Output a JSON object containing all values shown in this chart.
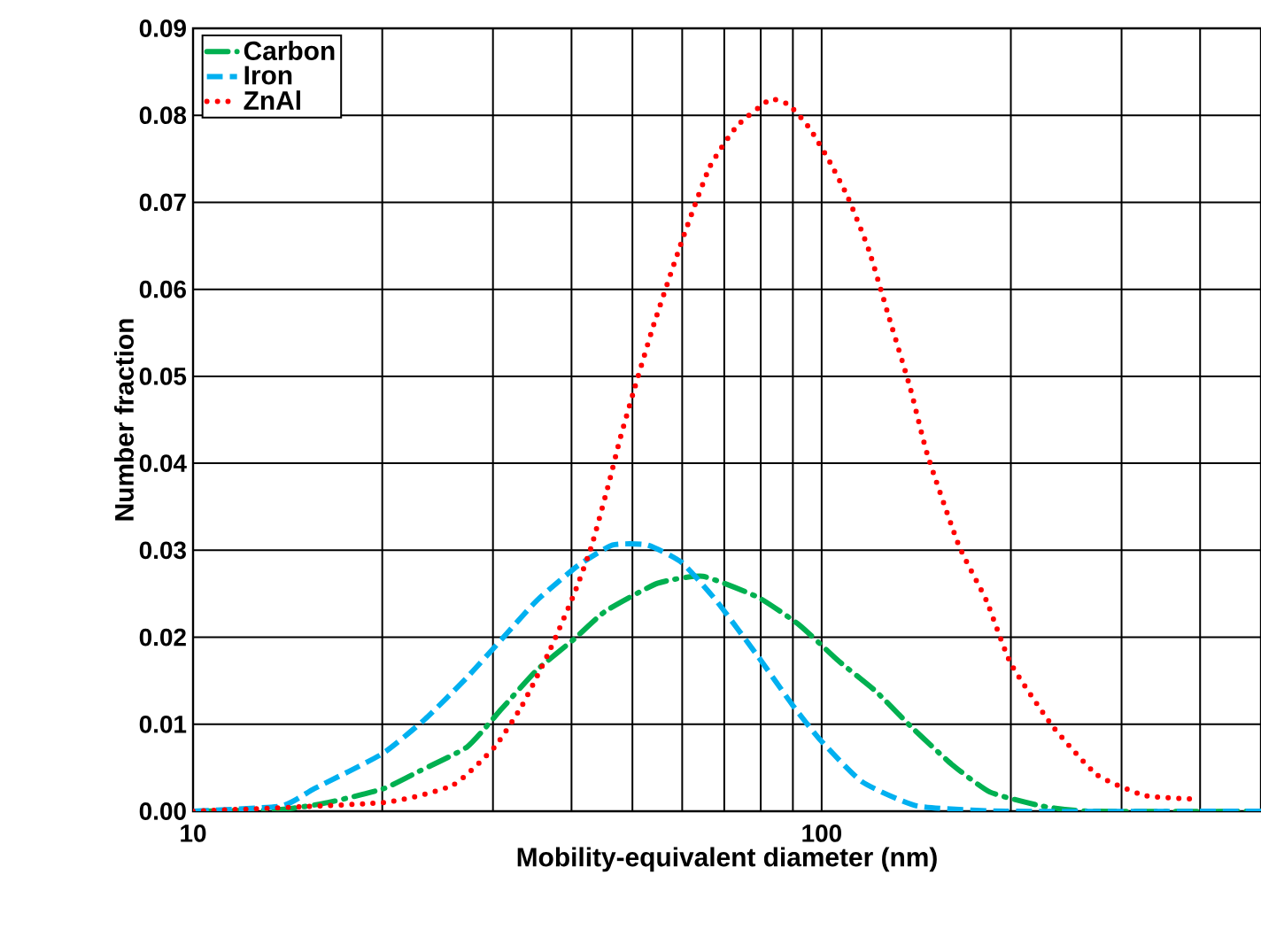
{
  "chart_data": {
    "type": "line",
    "xlabel": "Mobility-equivalent diameter (nm)",
    "ylabel": "Number fraction",
    "log": "x",
    "grid": true,
    "legend": "top left",
    "marker": "none",
    "xlim": [
      10,
      500
    ],
    "ylim": [
      0,
      0.09
    ],
    "xticks": [
      10,
      {
        "value": 20,
        "label": null
      },
      {
        "value": 30,
        "label": null
      },
      {
        "value": 40,
        "label": null
      },
      {
        "value": 50,
        "label": null
      },
      {
        "value": 60,
        "label": null
      },
      {
        "value": 70,
        "label": null
      },
      {
        "value": 80,
        "label": null
      },
      {
        "value": 90,
        "label": null
      },
      100,
      {
        "value": 200,
        "label": null
      },
      {
        "value": 300,
        "label": null
      },
      {
        "value": 400,
        "label": null
      },
      {
        "value": 500,
        "label": null
      }
    ],
    "yticks": [
      {
        "value": 0,
        "label": "0.00"
      },
      {
        "value": 0.01,
        "label": "0.01"
      },
      {
        "value": 0.02,
        "label": "0.02"
      },
      {
        "value": 0.03,
        "label": "0.03"
      },
      {
        "value": 0.04,
        "label": "0.04"
      },
      {
        "value": 0.05,
        "label": "0.05"
      },
      {
        "value": 0.06,
        "label": "0.06"
      },
      {
        "value": 0.07,
        "label": "0.07"
      },
      {
        "value": 0.08,
        "label": "0.08"
      },
      {
        "value": 0.09,
        "label": "0.09"
      }
    ],
    "series": [
      {
        "name": "Carbon",
        "color": "#00b050",
        "line_style": "dashdot",
        "x": [
          10,
          13.8,
          16.4,
          20.1,
          22.9,
          27.3,
          31,
          35.2,
          40.4,
          45.3,
          54.8,
          64.7,
          79.2,
          92.2,
          105.9,
          121.9,
          138.4,
          161,
          185.3,
          223.9,
          267,
          500
        ],
        "values": [
          0,
          0.0002,
          0.001,
          0.0026,
          0.0046,
          0.0074,
          0.0118,
          0.0162,
          0.0198,
          0.023,
          0.0262,
          0.027,
          0.0246,
          0.0214,
          0.0174,
          0.0138,
          0.0098,
          0.0054,
          0.0022,
          0.0006,
          0,
          0
        ]
      },
      {
        "name": "Iron",
        "color": "#00b0f0",
        "line_style": "dashed",
        "x": [
          10,
          13.8,
          15.6,
          20,
          23.4,
          27.3,
          31,
          35.2,
          40.9,
          46.5,
          52.8,
          59.9,
          68,
          79.2,
          89.9,
          99.5,
          115.9,
          142,
          197,
          500
        ],
        "values": [
          0,
          0.0006,
          0.0026,
          0.0066,
          0.0106,
          0.0154,
          0.0198,
          0.0242,
          0.0282,
          0.0306,
          0.0306,
          0.0286,
          0.0242,
          0.0178,
          0.0122,
          0.0082,
          0.0034,
          0.0006,
          0,
          0
        ]
      },
      {
        "name": "ZnAl",
        "color": "#ff0000",
        "line_style": "dotted",
        "x": [
          10,
          20.1,
          25.9,
          30.2,
          33.4,
          37,
          40.4,
          43.1,
          45.9,
          47.7,
          50.1,
          54.1,
          59.9,
          66.3,
          73.4,
          82.8,
          88.7,
          95.7,
          103.3,
          110.2,
          118.9,
          128.2,
          138.4,
          147.3,
          165.2,
          182.9,
          199.9,
          232.9,
          274,
          327,
          392
        ],
        "values": [
          0,
          0.001,
          0.003,
          0.0074,
          0.0122,
          0.0186,
          0.025,
          0.0306,
          0.0378,
          0.0426,
          0.048,
          0.056,
          0.0655,
          0.074,
          0.0788,
          0.0818,
          0.0812,
          0.0785,
          0.0745,
          0.0705,
          0.0645,
          0.0566,
          0.0486,
          0.041,
          0.0306,
          0.0242,
          0.017,
          0.0098,
          0.0042,
          0.0018,
          0.0014
        ]
      }
    ]
  }
}
